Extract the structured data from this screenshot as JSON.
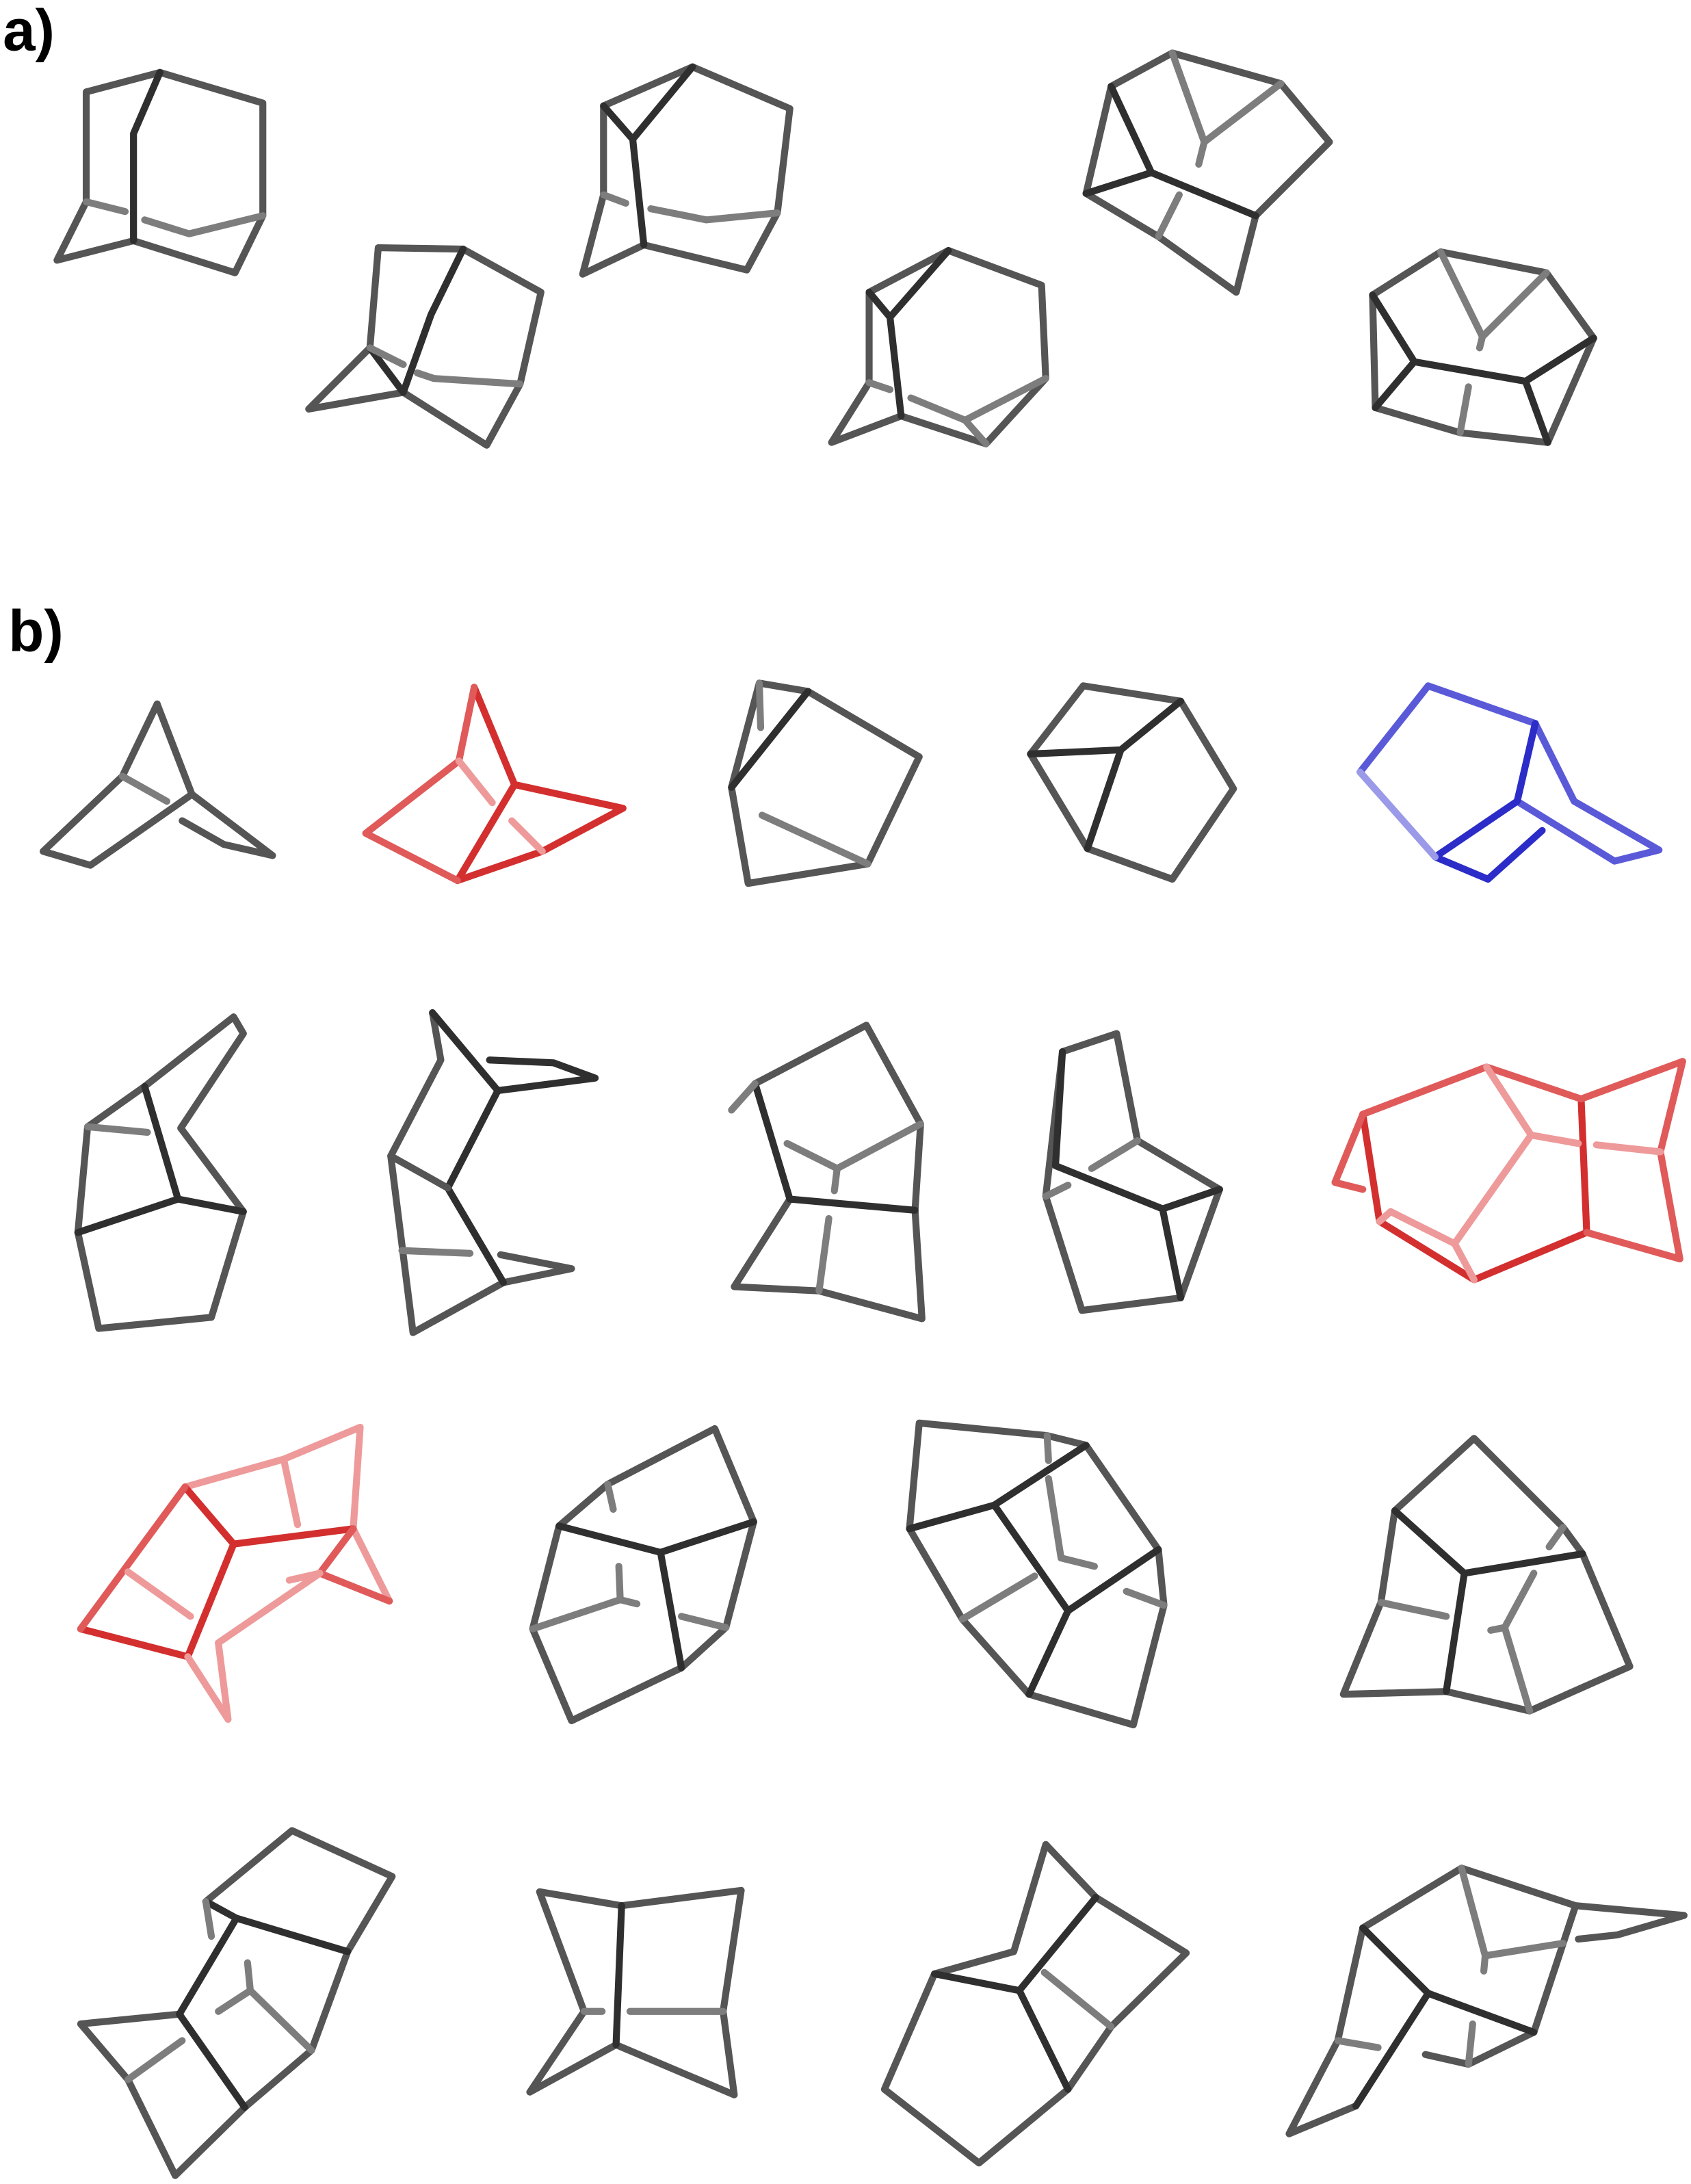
{
  "figure": {
    "panels": [
      {
        "id": "a",
        "label": "a)",
        "structure_count": 6
      },
      {
        "id": "b",
        "label": "b)",
        "structure_count": 18
      }
    ],
    "colors": {
      "default_bond": "#555555",
      "highlight_red": "#d32f2f",
      "highlight_blue": "#2c2cc8"
    },
    "highlighted": {
      "red": [
        "b-2",
        "b-10",
        "b-11"
      ],
      "blue": [
        "b-5"
      ]
    }
  }
}
